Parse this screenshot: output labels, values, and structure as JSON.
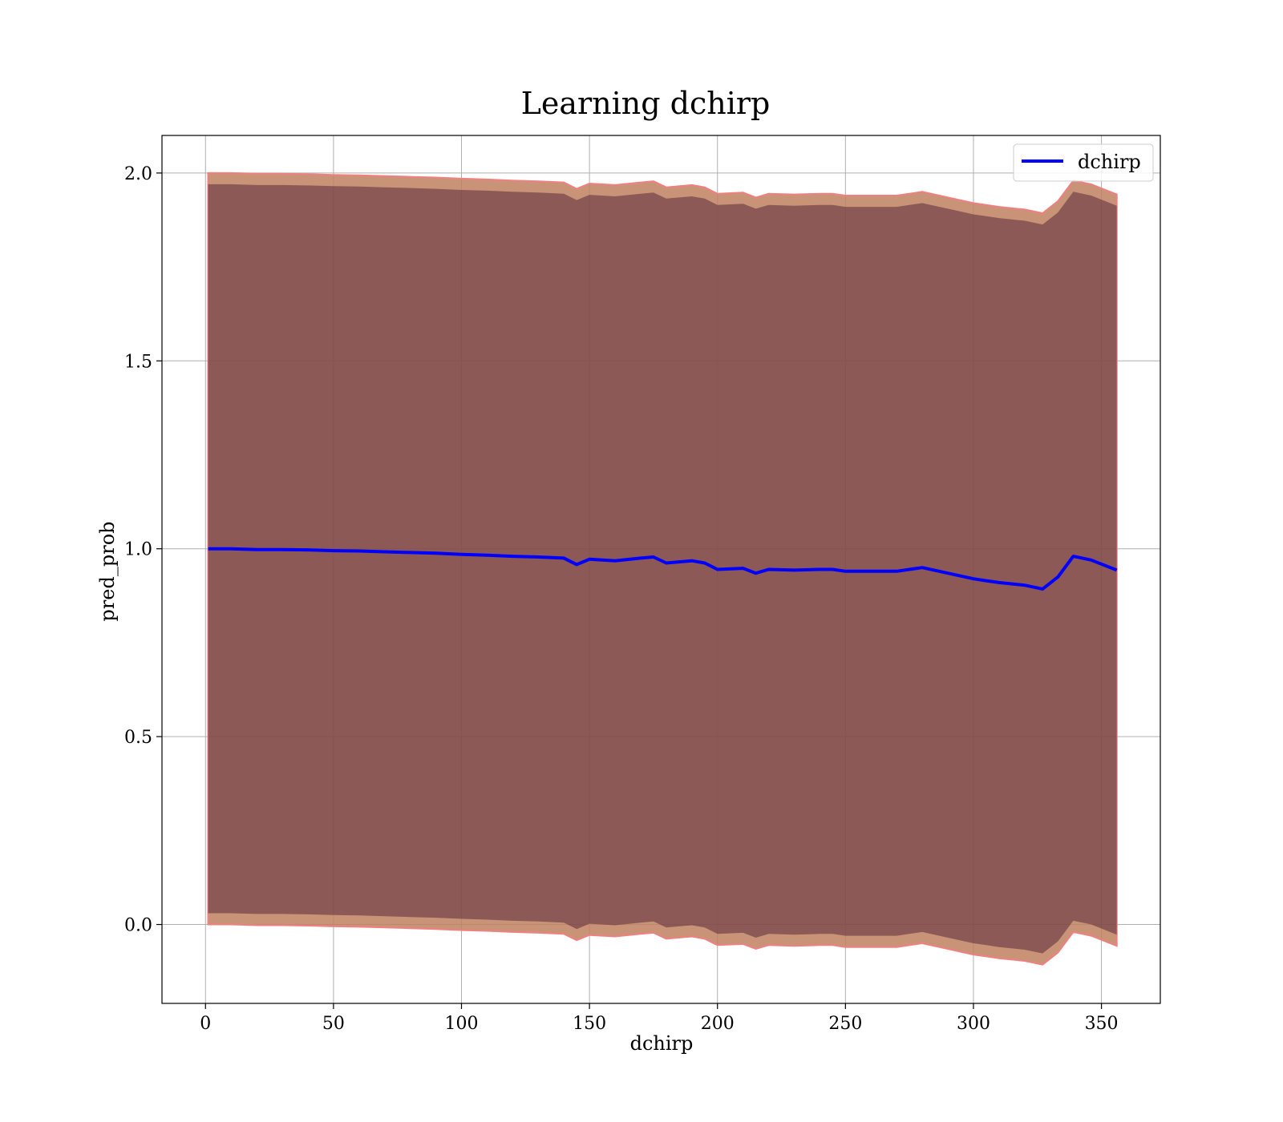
{
  "chart_data": {
    "type": "line",
    "title": "Learning dchirp",
    "xlabel": "dchirp",
    "ylabel": "pred_prob",
    "xlim": [
      -17,
      373
    ],
    "ylim": [
      -0.21,
      2.1
    ],
    "xticks": [
      0,
      50,
      100,
      150,
      200,
      250,
      300,
      350
    ],
    "yticks": [
      0.0,
      0.5,
      1.0,
      1.5,
      2.0
    ],
    "xtick_labels": [
      "0",
      "50",
      "100",
      "150",
      "200",
      "250",
      "300",
      "350"
    ],
    "ytick_labels": [
      "0.0",
      "0.5",
      "1.0",
      "1.5",
      "2.0"
    ],
    "grid": true,
    "legend_position": "top-right",
    "colors": {
      "line": "#0000ff",
      "band_outer": "#f08080",
      "band_inner": "#5a2a3a",
      "band_mid": "#c08060"
    },
    "series": [
      {
        "name": "dchirp",
        "x": [
          1,
          10,
          20,
          30,
          40,
          50,
          60,
          70,
          80,
          90,
          100,
          110,
          120,
          130,
          140,
          145,
          150,
          160,
          170,
          175,
          180,
          190,
          195,
          200,
          210,
          215,
          220,
          230,
          240,
          245,
          250,
          260,
          270,
          280,
          290,
          300,
          305,
          310,
          320,
          327,
          333,
          339,
          346,
          356
        ],
        "values": [
          1.0,
          1.0,
          0.998,
          0.998,
          0.997,
          0.995,
          0.994,
          0.992,
          0.99,
          0.988,
          0.985,
          0.983,
          0.98,
          0.978,
          0.975,
          0.958,
          0.972,
          0.968,
          0.975,
          0.978,
          0.962,
          0.968,
          0.962,
          0.945,
          0.948,
          0.935,
          0.945,
          0.943,
          0.945,
          0.945,
          0.94,
          0.94,
          0.94,
          0.95,
          0.935,
          0.92,
          0.915,
          0.91,
          0.903,
          0.893,
          0.925,
          0.98,
          0.97,
          0.943
        ]
      }
    ],
    "bands": [
      {
        "name": "outer",
        "x": [
          1,
          10,
          20,
          30,
          40,
          50,
          60,
          70,
          80,
          90,
          100,
          110,
          120,
          130,
          140,
          145,
          150,
          160,
          170,
          175,
          180,
          190,
          195,
          200,
          210,
          215,
          220,
          230,
          240,
          245,
          250,
          260,
          270,
          280,
          290,
          300,
          305,
          310,
          320,
          327,
          333,
          339,
          346,
          356
        ],
        "upper": [
          2.0,
          2.0,
          1.998,
          1.998,
          1.997,
          1.995,
          1.994,
          1.992,
          1.99,
          1.988,
          1.985,
          1.983,
          1.98,
          1.978,
          1.975,
          1.958,
          1.972,
          1.968,
          1.975,
          1.978,
          1.962,
          1.968,
          1.962,
          1.945,
          1.948,
          1.935,
          1.945,
          1.943,
          1.945,
          1.945,
          1.94,
          1.94,
          1.94,
          1.95,
          1.935,
          1.92,
          1.915,
          1.91,
          1.903,
          1.893,
          1.925,
          1.98,
          1.97,
          1.943
        ],
        "lower": [
          0.0,
          0.0,
          -0.002,
          -0.002,
          -0.003,
          -0.005,
          -0.006,
          -0.008,
          -0.01,
          -0.012,
          -0.015,
          -0.017,
          -0.02,
          -0.022,
          -0.025,
          -0.042,
          -0.028,
          -0.032,
          -0.025,
          -0.022,
          -0.038,
          -0.032,
          -0.038,
          -0.055,
          -0.052,
          -0.065,
          -0.055,
          -0.057,
          -0.055,
          -0.055,
          -0.06,
          -0.06,
          -0.06,
          -0.05,
          -0.065,
          -0.08,
          -0.085,
          -0.09,
          -0.097,
          -0.107,
          -0.075,
          -0.02,
          -0.03,
          -0.057
        ]
      },
      {
        "name": "inner",
        "x": [
          1,
          10,
          20,
          30,
          40,
          50,
          60,
          70,
          80,
          90,
          100,
          110,
          120,
          130,
          140,
          145,
          150,
          160,
          170,
          175,
          180,
          190,
          195,
          200,
          210,
          215,
          220,
          230,
          240,
          245,
          250,
          260,
          270,
          280,
          290,
          300,
          305,
          310,
          320,
          327,
          333,
          339,
          346,
          356
        ],
        "upper": [
          1.97,
          1.97,
          1.968,
          1.968,
          1.967,
          1.965,
          1.964,
          1.962,
          1.96,
          1.958,
          1.955,
          1.953,
          1.95,
          1.948,
          1.945,
          1.928,
          1.942,
          1.938,
          1.945,
          1.948,
          1.932,
          1.938,
          1.932,
          1.915,
          1.918,
          1.905,
          1.915,
          1.913,
          1.915,
          1.915,
          1.91,
          1.91,
          1.91,
          1.92,
          1.905,
          1.89,
          1.885,
          1.88,
          1.873,
          1.863,
          1.895,
          1.95,
          1.94,
          1.913
        ],
        "lower": [
          0.03,
          0.03,
          0.028,
          0.028,
          0.027,
          0.025,
          0.024,
          0.022,
          0.02,
          0.018,
          0.015,
          0.013,
          0.01,
          0.008,
          0.005,
          -0.012,
          0.002,
          -0.002,
          0.005,
          0.008,
          -0.008,
          -0.002,
          -0.008,
          -0.025,
          -0.022,
          -0.035,
          -0.025,
          -0.027,
          -0.025,
          -0.025,
          -0.03,
          -0.03,
          -0.03,
          -0.02,
          -0.035,
          -0.05,
          -0.055,
          -0.06,
          -0.067,
          -0.077,
          -0.045,
          0.01,
          0.0,
          -0.027
        ]
      }
    ]
  }
}
